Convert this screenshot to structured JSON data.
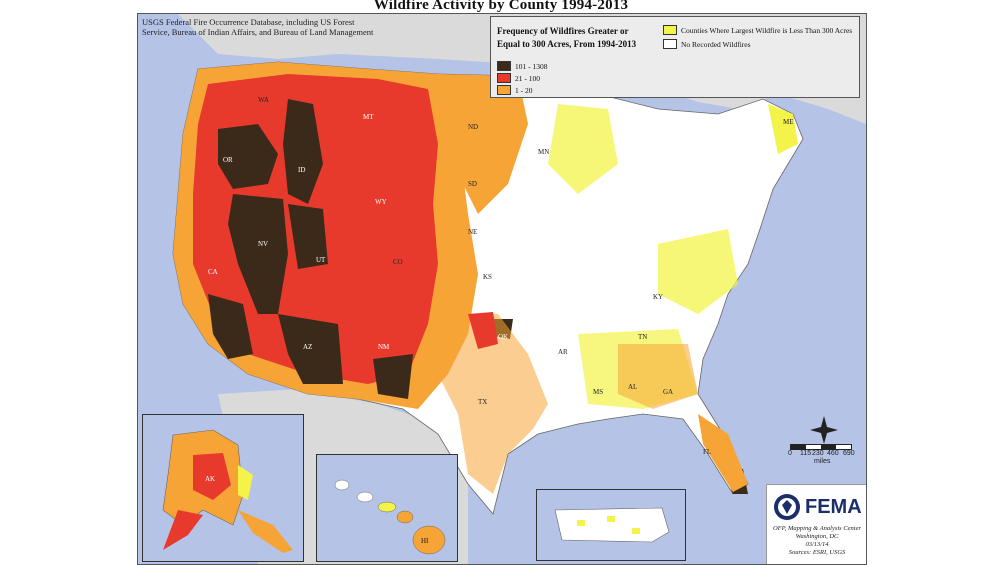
{
  "title": "Wildfire Activity by County 1994-2013",
  "source": [
    "USGS Federal Fire Occurrence Database, including US Forest",
    "Service, Bureau of Indian Affairs, and Bureau of Land Management"
  ],
  "legend": {
    "title": [
      "Frequency of Wildfires Greater or",
      "Equal to 300 Acres, From 1994-2013"
    ],
    "items": [
      {
        "label": "101 - 1308",
        "color": "#3b2a1a"
      },
      {
        "label": "21 - 100",
        "color": "#e83a2c"
      },
      {
        "label": "1 - 20",
        "color": "#f7a437"
      }
    ],
    "extra": [
      {
        "label": "Counties Where Largest Wildfire is Less Than 300 Acres",
        "color": "#f3f349"
      },
      {
        "label": "No Recorded Wildfires",
        "color": "#ffffff"
      }
    ]
  },
  "states": [
    "WA",
    "OR",
    "ID",
    "MT",
    "WY",
    "NV",
    "CA",
    "UT",
    "CO",
    "AZ",
    "NM",
    "ND",
    "SD",
    "NE",
    "KS",
    "OK",
    "TX",
    "MN",
    "AR",
    "MS",
    "AL",
    "GA",
    "FL",
    "KY",
    "TN",
    "ME",
    "AK",
    "HI"
  ],
  "scale": {
    "ticks": [
      "0",
      "115",
      "230",
      "460",
      "690"
    ],
    "unit": "miles"
  },
  "fema": {
    "logo_text": "FEMA",
    "lines": [
      "OFP, Mapping & Analysis Center",
      "Washington, DC",
      "03/13/14",
      "Sources: ESRI, USGS"
    ]
  },
  "colors": {
    "water": "#b4c3e6",
    "darkest": "#3b2a1a",
    "red": "#e83a2c",
    "orange": "#f7a437",
    "yellow": "#f3f349",
    "none": "#ffffff"
  }
}
